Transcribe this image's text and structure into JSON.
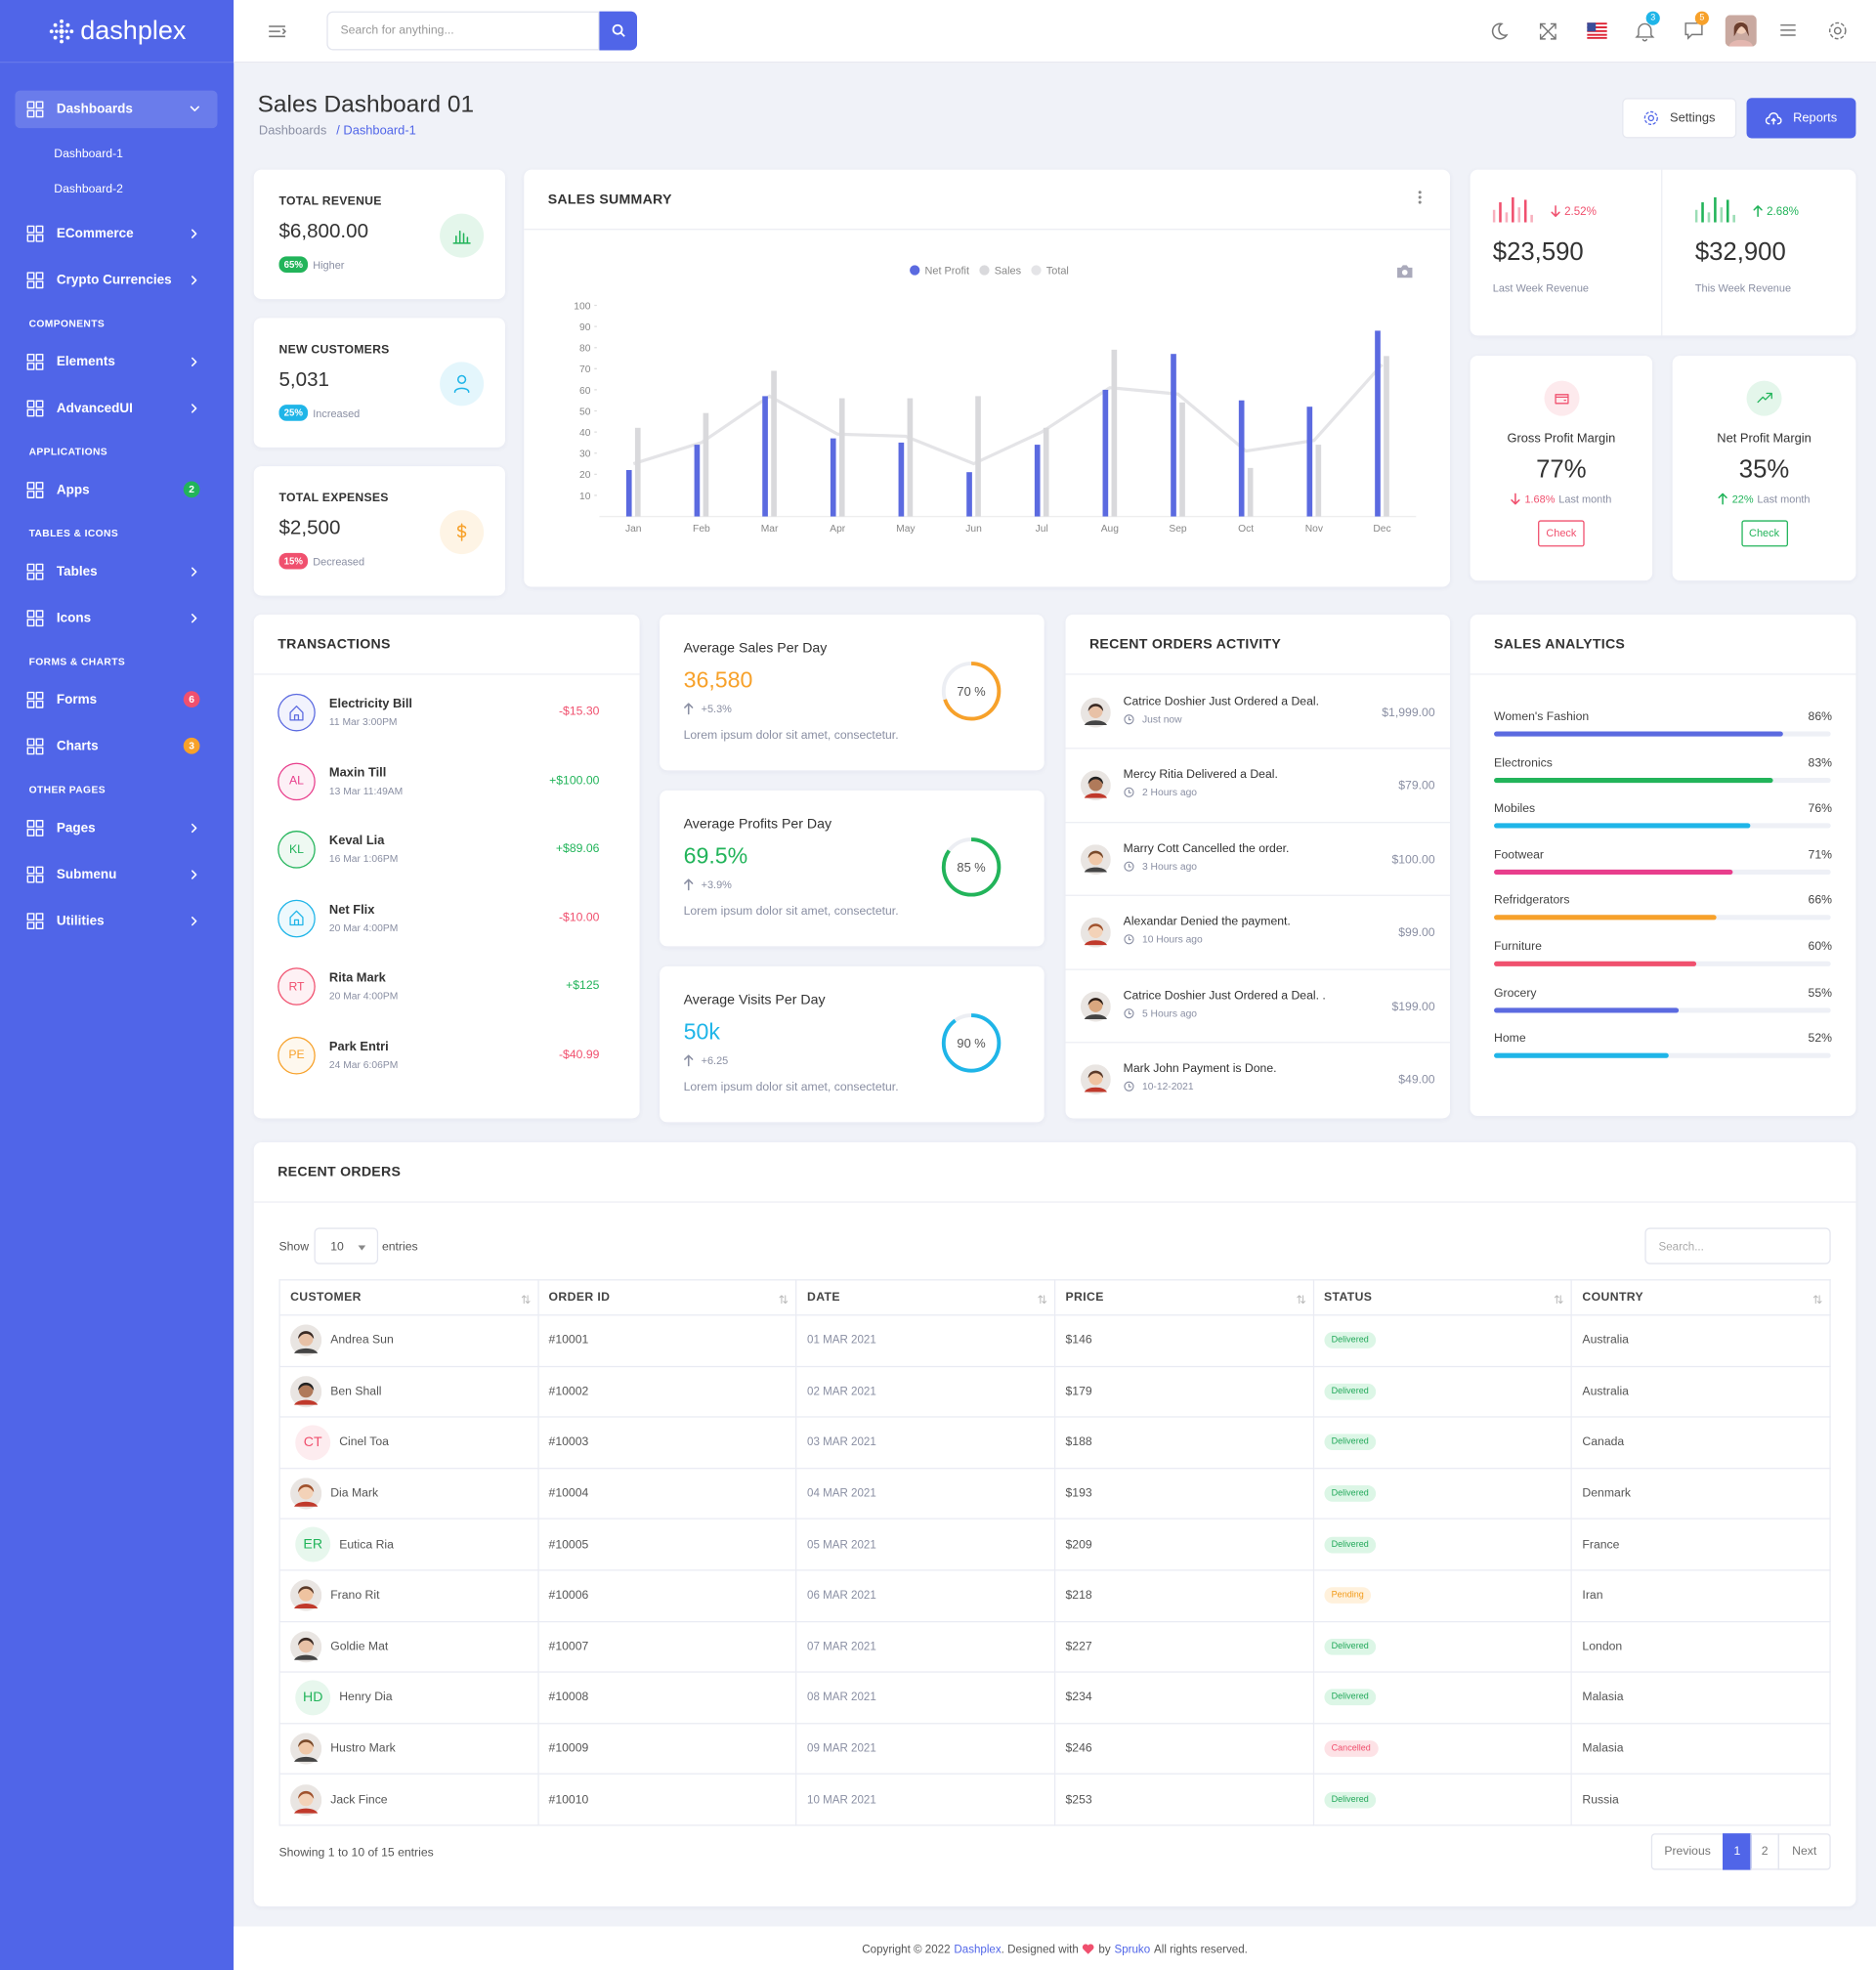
{
  "brand": "dashplex",
  "sidebar": [
    {
      "label": "Dashboards",
      "children": [
        "Dashboard-1",
        "Dashboard-2"
      ]
    },
    {
      "label": "ECommerce"
    },
    {
      "label": "Crypto Currencies"
    },
    {
      "section": "COMPONENTS"
    },
    {
      "label": "Elements"
    },
    {
      "label": "AdvancedUI"
    },
    {
      "section": "APPLICATIONS"
    },
    {
      "label": "Apps",
      "badge": "2",
      "badge_color": "#22b45a"
    },
    {
      "section": "TABLES & ICONS"
    },
    {
      "label": "Tables"
    },
    {
      "label": "Icons"
    },
    {
      "section": "FORMS & CHARTS"
    },
    {
      "label": "Forms",
      "badge": "6",
      "badge_color": "#f0506e"
    },
    {
      "label": "Charts",
      "badge": "3",
      "badge_color": "#f7a12a"
    },
    {
      "section": "OTHER PAGES"
    },
    {
      "label": "Pages"
    },
    {
      "label": "Submenu"
    },
    {
      "label": "Utilities"
    }
  ],
  "header": {
    "search_placeholder": "Search for anything...",
    "notifications": "3",
    "messages": "5"
  },
  "page": {
    "title": "Sales Dashboard 01",
    "breadcrumb": [
      "Dashboards",
      "/ Dashboard-1"
    ],
    "settings": "Settings",
    "reports": "Reports"
  },
  "stats": [
    {
      "title": "TOTAL REVENUE",
      "value": "$6,800.00",
      "badge": "65%",
      "note": "Higher",
      "color": "#22b45a"
    },
    {
      "title": "NEW CUSTOMERS",
      "value": "5,031",
      "badge": "25%",
      "note": "Increased",
      "color": "#1fb5e8"
    },
    {
      "title": "TOTAL EXPENSES",
      "value": "$2,500",
      "badge": "15%",
      "note": "Decreased",
      "color": "#f0506e",
      "icon_color": "#f7a12a"
    }
  ],
  "chart_data": {
    "type": "bar",
    "title": "SALES SUMMARY",
    "categories": [
      "Jan",
      "Feb",
      "Mar",
      "Apr",
      "May",
      "Jun",
      "Jul",
      "Aug",
      "Sep",
      "Oct",
      "Nov",
      "Dec"
    ],
    "series": [
      {
        "name": "Net Profit",
        "type": "bar",
        "color": "#5b6ae0",
        "values": [
          22,
          34,
          57,
          37,
          35,
          21,
          34,
          60,
          77,
          55,
          52,
          88
        ]
      },
      {
        "name": "Sales",
        "type": "bar",
        "color": "#d9d9dc",
        "values": [
          42,
          49,
          69,
          56,
          56,
          57,
          42,
          79,
          54,
          23,
          34,
          76
        ]
      },
      {
        "name": "Total",
        "type": "line",
        "color": "#e4e4e7",
        "values": [
          25,
          35,
          57,
          39,
          38,
          25,
          40,
          61,
          58,
          31,
          36,
          72
        ]
      }
    ],
    "ylim": [
      0,
      100
    ],
    "yticks": [
      10,
      20,
      30,
      40,
      50,
      60,
      70,
      80,
      90,
      100
    ]
  },
  "week_revenue": [
    {
      "change": "2.52%",
      "trend": "down",
      "color": "#f0506e",
      "value": "$23,590",
      "label": "Last Week Revenue"
    },
    {
      "change": "2.68%",
      "trend": "up",
      "color": "#22b45a",
      "value": "$32,900",
      "label": "This Week Revenue"
    }
  ],
  "margins": [
    {
      "title": "Gross Profit Margin",
      "value": "77%",
      "change": "1.68%",
      "period": "Last month",
      "trend": "down",
      "button": "Check",
      "color": "#f0506e"
    },
    {
      "title": "Net Profit Margin",
      "value": "35%",
      "change": "22%",
      "period": "Last month",
      "trend": "up",
      "button": "Check",
      "color": "#22b45a"
    }
  ],
  "transactions": {
    "title": "TRANSACTIONS",
    "items": [
      {
        "name": "Electricity Bill",
        "date": "11 Mar 3:00PM",
        "amount": "-$15.30",
        "initials": null,
        "color": "#5b6ae0"
      },
      {
        "name": "Maxin Till",
        "date": "13 Mar 11:49AM",
        "amount": "+$100.00",
        "initials": "AL",
        "color": "#e83e8c"
      },
      {
        "name": "Keval Lia",
        "date": "16 Mar 1:06PM",
        "amount": "+$89.06",
        "initials": "KL",
        "color": "#22b45a"
      },
      {
        "name": "Net Flix",
        "date": "20 Mar 4:00PM",
        "amount": "-$10.00",
        "initials": null,
        "color": "#1fb5e8"
      },
      {
        "name": "Rita Mark",
        "date": "20 Mar 4:00PM",
        "amount": "+$125",
        "initials": "RT",
        "color": "#f0506e"
      },
      {
        "name": "Park Entri",
        "date": "24 Mar 6:06PM",
        "amount": "-$40.99",
        "initials": "PE",
        "color": "#f7a12a"
      }
    ]
  },
  "averages": [
    {
      "title": "Average Sales Per Day",
      "value": "36,580",
      "change": "+5.3%",
      "text": "Lorem ipsum dolor sit amet, consectetur.",
      "percent": 70,
      "percent_label": "70 %",
      "color": "#f7a12a"
    },
    {
      "title": "Average Profits Per Day",
      "value": "69.5%",
      "change": "+3.9%",
      "text": "Lorem ipsum dolor sit amet, consectetur.",
      "percent": 85,
      "percent_label": "85 %",
      "color": "#22b45a"
    },
    {
      "title": "Average Visits Per Day",
      "value": "50k",
      "change": "+6.25",
      "text": "Lorem ipsum dolor sit amet, consectetur.",
      "percent": 90,
      "percent_label": "90 %",
      "color": "#1fb5e8"
    }
  ],
  "activity": {
    "title": "RECENT ORDERS ACTIVITY",
    "items": [
      {
        "text": "Catrice Doshier Just Ordered a Deal.",
        "time": "Just now",
        "amount": "$1,999.00"
      },
      {
        "text": "Mercy Ritia Delivered a Deal.",
        "time": "2 Hours ago",
        "amount": "$79.00"
      },
      {
        "text": "Marry Cott Cancelled the order.",
        "time": "3 Hours ago",
        "amount": "$100.00"
      },
      {
        "text": "Alexandar Denied the payment.",
        "time": "10 Hours ago",
        "amount": "$99.00"
      },
      {
        "text": "Catrice Doshier Just Ordered a Deal. .",
        "time": "5 Hours ago",
        "amount": "$199.00"
      },
      {
        "text": "Mark John Payment is Done.",
        "time": "10-12-2021",
        "amount": "$49.00"
      }
    ]
  },
  "analytics": {
    "title": "SALES ANALYTICS",
    "items": [
      {
        "label": "Women's Fashion",
        "value": 86,
        "value_label": "86%",
        "color": "#5b6ae0"
      },
      {
        "label": "Electronics",
        "value": 83,
        "value_label": "83%",
        "color": "#22b45a"
      },
      {
        "label": "Mobiles",
        "value": 76,
        "value_label": "76%",
        "color": "#1fb5e8"
      },
      {
        "label": "Footwear",
        "value": 71,
        "value_label": "71%",
        "color": "#e83e8c"
      },
      {
        "label": "Refridgerators",
        "value": 66,
        "value_label": "66%",
        "color": "#f7a12a"
      },
      {
        "label": "Furniture",
        "value": 60,
        "value_label": "60%",
        "color": "#f0506e"
      },
      {
        "label": "Grocery",
        "value": 55,
        "value_label": "55%",
        "color": "#5b6ae0"
      },
      {
        "label": "Home",
        "value": 52,
        "value_label": "52%",
        "color": "#1fb5e8"
      }
    ]
  },
  "orders": {
    "title": "RECENT ORDERS",
    "show": "Show",
    "length": "10",
    "entries": "entries",
    "search": "Search...",
    "columns": [
      "CUSTOMER",
      "ORDER ID",
      "DATE",
      "PRICE",
      "STATUS",
      "COUNTRY"
    ],
    "rows": [
      [
        "Andrea Sun",
        "#10001",
        "01 MAR 2021",
        "$146",
        "Delivered",
        "Australia"
      ],
      [
        "Ben Shall",
        "#10002",
        "02 MAR 2021",
        "$179",
        "Delivered",
        "Australia"
      ],
      [
        "Cinel Toa",
        "#10003",
        "03 MAR 2021",
        "$188",
        "Delivered",
        "Canada"
      ],
      [
        "Dia Mark",
        "#10004",
        "04 MAR 2021",
        "$193",
        "Delivered",
        "Denmark"
      ],
      [
        "Eutica Ria",
        "#10005",
        "05 MAR 2021",
        "$209",
        "Delivered",
        "France"
      ],
      [
        "Frano Rit",
        "#10006",
        "06 MAR 2021",
        "$218",
        "Pending",
        "Iran"
      ],
      [
        "Goldie Mat",
        "#10007",
        "07 MAR 2021",
        "$227",
        "Delivered",
        "London"
      ],
      [
        "Henry Dia",
        "#10008",
        "08 MAR 2021",
        "$234",
        "Delivered",
        "Malasia"
      ],
      [
        "Hustro Mark",
        "#10009",
        "09 MAR 2021",
        "$246",
        "Cancelled",
        "Malasia"
      ],
      [
        "Jack Fince",
        "#10010",
        "10 MAR 2021",
        "$253",
        "Delivered",
        "Russia"
      ]
    ],
    "avatars": [
      null,
      null,
      "CT",
      null,
      "ER",
      null,
      null,
      "HD",
      null,
      null
    ],
    "info": "Showing 1 to 10 of 15 entries",
    "pagination": [
      "Previous",
      "1",
      "2",
      "Next"
    ]
  },
  "footer": {
    "copyright": "Copyright © 2022",
    "brand": "Dashplex",
    "designed": ". Designed with",
    "by": "by",
    "author": "Spruko",
    "rights": "All rights reserved."
  }
}
